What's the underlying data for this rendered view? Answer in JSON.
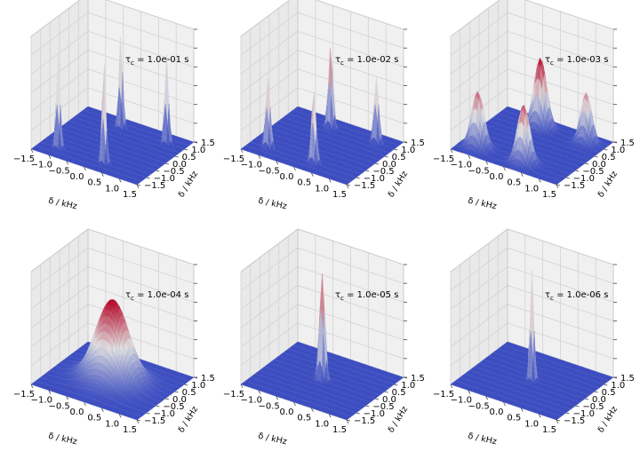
{
  "colors": {
    "low": "#3b4cc0",
    "mid": "#dddddd",
    "high": "#b40426",
    "pane_wall": "#f0f0f0",
    "pane_floor": "#e8e8e8",
    "grid": "#d2d2d2"
  },
  "chart_data": [
    {
      "type": "surface3d",
      "title_label": "τ",
      "title_sub": "c",
      "title_value": " = 1.0e-01 s",
      "xlabel": "δ / kHz",
      "ylabel": "δ / kHz",
      "xticks": [
        "−1.5",
        "−1.0",
        "−0.5",
        "0.0",
        "0.5",
        "1.0",
        "1.5"
      ],
      "yticks": [
        "−1.5",
        "−1.0",
        "−0.5",
        "0.0",
        "0.5",
        "1.0",
        "1.5"
      ],
      "xlim": [
        -1.5,
        1.5
      ],
      "ylim": [
        -1.5,
        1.5
      ],
      "peaks": [
        {
          "x": -1.0,
          "y": -1.0,
          "height": 0.85,
          "width": 0.05
        },
        {
          "x": 0.3,
          "y": -1.0,
          "height": 0.9,
          "width": 0.05
        },
        {
          "x": -0.3,
          "y": 1.0,
          "height": 0.82,
          "width": 0.05
        },
        {
          "x": 1.0,
          "y": 1.0,
          "height": 0.78,
          "width": 0.05
        }
      ]
    },
    {
      "type": "surface3d",
      "title_label": "τ",
      "title_sub": "c",
      "title_value": " = 1.0e-02 s",
      "xlabel": "δ / kHz",
      "ylabel": "δ / kHz",
      "xticks": [
        "−1.5",
        "−1.0",
        "−0.5",
        "0.0",
        "0.5",
        "1.0",
        "1.5"
      ],
      "yticks": [
        "−1.5",
        "−1.0",
        "−0.5",
        "0.0",
        "0.5",
        "1.0",
        "1.5"
      ],
      "xlim": [
        -1.5,
        1.5
      ],
      "ylim": [
        -1.5,
        1.5
      ],
      "peaks": [
        {
          "x": -1.0,
          "y": -1.0,
          "height": 0.62,
          "width": 0.06
        },
        {
          "x": 0.3,
          "y": -1.0,
          "height": 0.65,
          "width": 0.06
        },
        {
          "x": -0.3,
          "y": 1.0,
          "height": 0.72,
          "width": 0.06
        },
        {
          "x": 1.0,
          "y": 1.0,
          "height": 0.6,
          "width": 0.06
        }
      ]
    },
    {
      "type": "surface3d",
      "title_label": "τ",
      "title_sub": "c",
      "title_value": " = 1.0e-03 s",
      "xlabel": "δ / kHz",
      "ylabel": "δ / kHz",
      "xticks": [
        "−1.5",
        "−1.0",
        "−0.5",
        "0.0",
        "0.5",
        "1.0",
        "1.5"
      ],
      "yticks": [
        "−1.5",
        "−1.0",
        "−0.5",
        "0.0",
        "0.5",
        "1.0",
        "1.5"
      ],
      "xlim": [
        -1.5,
        1.5
      ],
      "ylim": [
        -1.5,
        1.5
      ],
      "peaks": [
        {
          "x": -1.0,
          "y": -1.0,
          "height": 0.5,
          "width": 0.16
        },
        {
          "x": 0.3,
          "y": -1.0,
          "height": 0.52,
          "width": 0.16
        },
        {
          "x": -0.3,
          "y": 1.0,
          "height": 0.62,
          "width": 0.16
        },
        {
          "x": 1.0,
          "y": 1.0,
          "height": 0.45,
          "width": 0.14
        }
      ]
    },
    {
      "type": "surface3d",
      "title_label": "τ",
      "title_sub": "c",
      "title_value": " = 1.0e-04 s",
      "xlabel": "δ / kHz",
      "ylabel": "δ / kHz",
      "xticks": [
        "−1.5",
        "−1.0",
        "−0.5",
        "0.0",
        "0.5",
        "1.0",
        "1.5"
      ],
      "yticks": [
        "−1.5",
        "−1.0",
        "−0.5",
        "0.0",
        "0.5",
        "1.0",
        "1.5"
      ],
      "xlim": [
        -1.5,
        1.5
      ],
      "ylim": [
        -1.5,
        1.5
      ],
      "peaks": [
        {
          "x": 0.0,
          "y": 0.0,
          "height": 0.72,
          "width": 0.42
        }
      ]
    },
    {
      "type": "surface3d",
      "title_label": "τ",
      "title_sub": "c",
      "title_value": " = 1.0e-05 s",
      "xlabel": "δ / kHz",
      "ylabel": "δ / kHz",
      "xticks": [
        "−1.5",
        "−1.0",
        "−0.5",
        "0.0",
        "0.5",
        "1.0",
        "1.5"
      ],
      "yticks": [
        "−1.5",
        "−1.0",
        "−0.5",
        "0.0",
        "0.5",
        "1.0",
        "1.5"
      ],
      "xlim": [
        -1.5,
        1.5
      ],
      "ylim": [
        -1.5,
        1.5
      ],
      "peaks": [
        {
          "x": 0.0,
          "y": 0.0,
          "height": 0.95,
          "width": 0.07
        }
      ]
    },
    {
      "type": "surface3d",
      "title_label": "τ",
      "title_sub": "c",
      "title_value": " = 1.0e-06 s",
      "xlabel": "δ / kHz",
      "ylabel": "δ / kHz",
      "xticks": [
        "−1.5",
        "−1.0",
        "−0.5",
        "0.0",
        "0.5",
        "1.0",
        "1.5"
      ],
      "yticks": [
        "−1.5",
        "−1.0",
        "−0.5",
        "0.0",
        "0.5",
        "1.0",
        "1.5"
      ],
      "xlim": [
        -1.5,
        1.5
      ],
      "ylim": [
        -1.5,
        1.5
      ],
      "peaks": [
        {
          "x": 0.0,
          "y": 0.0,
          "height": 0.98,
          "width": 0.05
        }
      ]
    }
  ]
}
